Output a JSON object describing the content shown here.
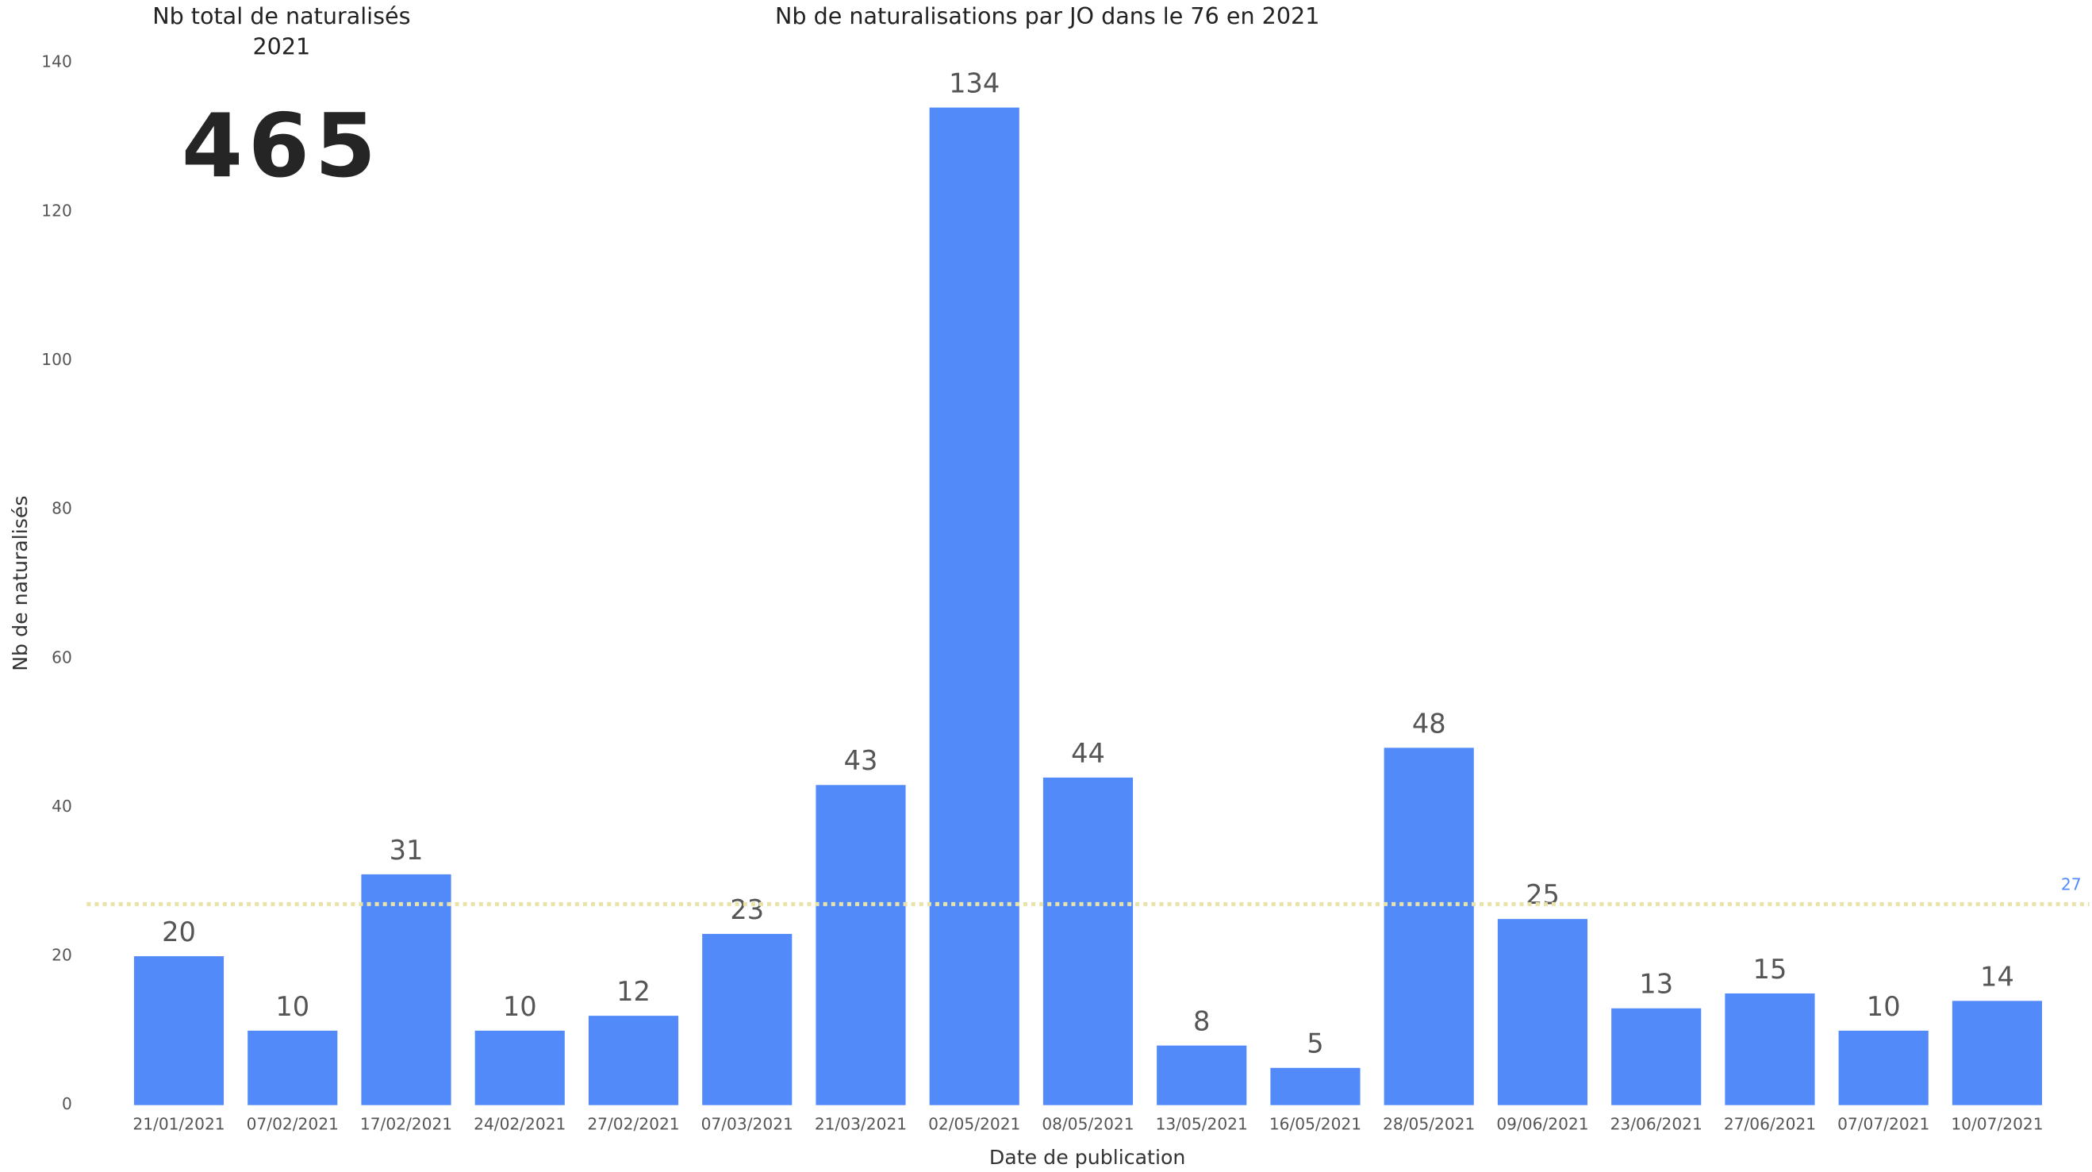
{
  "card": {
    "title_lines": [
      "Nb total de naturalisés",
      "2021"
    ],
    "value": 465
  },
  "chart_data": {
    "type": "bar",
    "title": "Nb de naturalisations par JO dans le 76 en 2021",
    "x_label": "Date de publication",
    "y_label": "Nb de naturalisés",
    "categories": [
      "21/01/2021",
      "07/02/2021",
      "17/02/2021",
      "24/02/2021",
      "27/02/2021",
      "07/03/2021",
      "21/03/2021",
      "02/05/2021",
      "08/05/2021",
      "13/05/2021",
      "16/05/2021",
      "28/05/2021",
      "09/06/2021",
      "23/06/2021",
      "27/06/2021",
      "07/07/2021",
      "10/07/2021"
    ],
    "values": [
      20,
      10,
      31,
      10,
      12,
      23,
      43,
      134,
      44,
      8,
      5,
      48,
      25,
      13,
      15,
      10,
      14
    ],
    "color": "#528bf9",
    "ylim": [
      0,
      140
    ],
    "yticks": [
      0,
      20,
      40,
      60,
      80,
      100,
      120,
      140
    ],
    "grid": false,
    "reference_line": {
      "value": 27,
      "color": "#e8e3a8",
      "label_color": "#528bf9"
    }
  }
}
